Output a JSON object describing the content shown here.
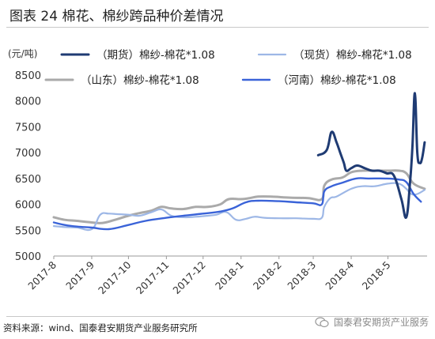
{
  "header": {
    "title": "图表 24 棉花、棉纱跨品种价差情况"
  },
  "footer": {
    "source": "资料来源：wind、国泰君安期货产业服务研究所",
    "watermark": "国泰君安期货产业服务"
  },
  "chart_data": {
    "type": "line",
    "ylabel": "(元/吨)",
    "ylim": [
      5000,
      8500
    ],
    "yticks": [
      "8500",
      "8000",
      "7500",
      "7000",
      "6500",
      "6000",
      "5500",
      "5000"
    ],
    "xticks": [
      "2017-8",
      "2017-9",
      "2017-10",
      "2017-11",
      "2017-12",
      "2018-1",
      "2018-2",
      "2018-3",
      "2018-4",
      "2018-5"
    ],
    "grid": false,
    "legend_position": "top",
    "series": [
      {
        "name": "（期货）棉纱-棉花*1.08",
        "color": "#1f3b73",
        "x": [
          "2018-03-05",
          "2018-03-12",
          "2018-03-16",
          "2018-03-20",
          "2018-03-23",
          "2018-03-26",
          "2018-03-28",
          "2018-04-01",
          "2018-04-06",
          "2018-04-12",
          "2018-04-18",
          "2018-04-24",
          "2018-04-30",
          "2018-05-06",
          "2018-05-12",
          "2018-05-16",
          "2018-05-19",
          "2018-05-21",
          "2018-05-23",
          "2018-05-25",
          "2018-05-27",
          "2018-05-29",
          "2018-05-31"
        ],
        "values": [
          6950,
          7050,
          7400,
          7200,
          7000,
          6800,
          6650,
          6700,
          6750,
          6700,
          6650,
          6650,
          6600,
          6550,
          6100,
          5750,
          6400,
          7100,
          8150,
          7000,
          6800,
          6900,
          7200
        ]
      },
      {
        "name": "（现货）棉纱-棉花*1.08",
        "color": "#9db7e6",
        "x": [
          "2017-08-01",
          "2017-08-10",
          "2017-08-20",
          "2017-09-01",
          "2017-09-08",
          "2017-09-15",
          "2017-09-22",
          "2017-10-01",
          "2017-10-10",
          "2017-10-20",
          "2017-10-28",
          "2017-11-05",
          "2017-11-15",
          "2017-11-25",
          "2017-12-05",
          "2017-12-12",
          "2017-12-20",
          "2017-12-28",
          "2018-01-05",
          "2018-01-12",
          "2018-01-20",
          "2018-02-01",
          "2018-02-15",
          "2018-03-01",
          "2018-03-08",
          "2018-03-10",
          "2018-03-15",
          "2018-03-20",
          "2018-04-01",
          "2018-04-10",
          "2018-04-20",
          "2018-05-01",
          "2018-05-10",
          "2018-05-16",
          "2018-05-20",
          "2018-05-25",
          "2018-05-31"
        ],
        "values": [
          5580,
          5560,
          5550,
          5520,
          5800,
          5820,
          5810,
          5800,
          5780,
          5850,
          5900,
          5780,
          5750,
          5760,
          5780,
          5800,
          5850,
          5700,
          5720,
          5760,
          5740,
          5730,
          5730,
          5720,
          5740,
          5950,
          6120,
          6150,
          6300,
          6350,
          6350,
          6400,
          6400,
          6300,
          6200,
          6200,
          6280
        ]
      },
      {
        "name": "（山东）棉纱-棉花*1.08",
        "color": "#aaaaaa",
        "x": [
          "2017-08-01",
          "2017-08-10",
          "2017-08-20",
          "2017-09-01",
          "2017-09-10",
          "2017-09-20",
          "2017-10-01",
          "2017-10-10",
          "2017-10-20",
          "2017-10-28",
          "2017-11-05",
          "2017-11-15",
          "2017-11-25",
          "2017-12-05",
          "2017-12-15",
          "2017-12-22",
          "2018-01-01",
          "2018-01-08",
          "2018-01-15",
          "2018-01-25",
          "2018-02-10",
          "2018-02-25",
          "2018-03-08",
          "2018-03-10",
          "2018-03-16",
          "2018-03-25",
          "2018-04-01",
          "2018-04-10",
          "2018-04-20",
          "2018-05-01",
          "2018-05-10",
          "2018-05-16",
          "2018-05-22",
          "2018-05-31"
        ],
        "values": [
          5750,
          5700,
          5680,
          5650,
          5640,
          5700,
          5780,
          5830,
          5880,
          5950,
          5920,
          5910,
          5950,
          5950,
          6000,
          6100,
          6100,
          6120,
          6150,
          6150,
          6130,
          6120,
          6100,
          6360,
          6480,
          6520,
          6620,
          6650,
          6650,
          6650,
          6650,
          6600,
          6400,
          6300
        ]
      },
      {
        "name": "（河南）棉纱-棉花*1.08",
        "color": "#3a63d8",
        "x": [
          "2017-08-01",
          "2017-08-10",
          "2017-08-20",
          "2017-09-01",
          "2017-09-15",
          "2017-10-01",
          "2017-10-15",
          "2017-11-01",
          "2017-11-15",
          "2017-12-01",
          "2017-12-15",
          "2017-12-25",
          "2018-01-05",
          "2018-01-15",
          "2018-02-01",
          "2018-02-15",
          "2018-03-01",
          "2018-03-08",
          "2018-03-10",
          "2018-03-16",
          "2018-03-25",
          "2018-04-05",
          "2018-04-15",
          "2018-04-30",
          "2018-05-10",
          "2018-05-16",
          "2018-05-22",
          "2018-05-28"
        ],
        "values": [
          5650,
          5600,
          5570,
          5550,
          5520,
          5600,
          5680,
          5740,
          5780,
          5820,
          5860,
          5920,
          6040,
          6070,
          6060,
          6040,
          6020,
          6000,
          6250,
          6350,
          6420,
          6500,
          6500,
          6500,
          6480,
          6430,
          6200,
          6050
        ]
      }
    ]
  }
}
